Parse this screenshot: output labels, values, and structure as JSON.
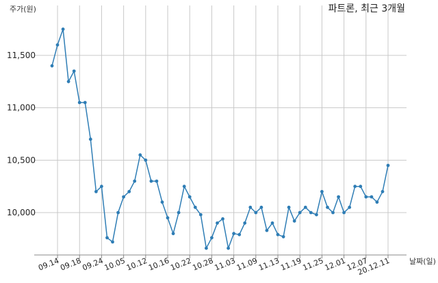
{
  "chart_data": {
    "type": "line",
    "title": "파트론, 최근 3개월",
    "ylabel": "주가(원)",
    "xlabel": "날짜(일)",
    "ylim": [
      9550,
      11950
    ],
    "yticks": [
      10000,
      10500,
      11000,
      11500
    ],
    "ytick_labels": [
      "10,000",
      "10,500",
      "11,000",
      "11,500"
    ],
    "grid": true,
    "line_color": "#2e7db5",
    "x": [
      "09.11",
      "09.14",
      "09.15",
      "09.16",
      "09.17",
      "09.18",
      "09.21",
      "09.22",
      "09.23",
      "09.24",
      "09.25",
      "09.28",
      "09.29",
      "10.05",
      "10.06",
      "10.07",
      "10.08",
      "10.12",
      "10.13",
      "10.14",
      "10.15",
      "10.16",
      "10.19",
      "10.20",
      "10.21",
      "10.22",
      "10.23",
      "10.26",
      "10.27",
      "10.28",
      "10.29",
      "10.30",
      "11.02",
      "11.03",
      "11.04",
      "11.05",
      "11.06",
      "11.09",
      "11.10",
      "11.11",
      "11.12",
      "11.13",
      "11.16",
      "11.17",
      "11.18",
      "11.19",
      "11.20",
      "11.23",
      "11.24",
      "11.25",
      "11.26",
      "11.27",
      "11.30",
      "12.01",
      "12.02",
      "12.03",
      "12.04",
      "12.07",
      "12.08",
      "12.09",
      "12.10",
      "12.11"
    ],
    "values": [
      11400,
      11600,
      11750,
      11250,
      11350,
      11050,
      11050,
      10700,
      10200,
      10250,
      9760,
      9720,
      10000,
      10150,
      10200,
      10300,
      10550,
      10500,
      10300,
      10300,
      10100,
      9950,
      9800,
      10000,
      10250,
      10150,
      10050,
      9980,
      9660,
      9760,
      9900,
      9940,
      9660,
      9800,
      9790,
      9900,
      10050,
      10000,
      10050,
      9830,
      9900,
      9790,
      9770,
      10050,
      9920,
      10000,
      10050,
      10000,
      9980,
      10200,
      10050,
      10000,
      10150,
      10000,
      10050,
      10250,
      10250,
      10150,
      10150,
      10100,
      10200,
      10450
    ],
    "xtick_labels": [
      "09.14",
      "09.18",
      "09.24",
      "10.05",
      "10.12",
      "10.16",
      "10.22",
      "10.28",
      "11.03",
      "11.09",
      "11.13",
      "11.19",
      "11.25",
      "12.01",
      "12.07",
      "20.12.11"
    ]
  }
}
